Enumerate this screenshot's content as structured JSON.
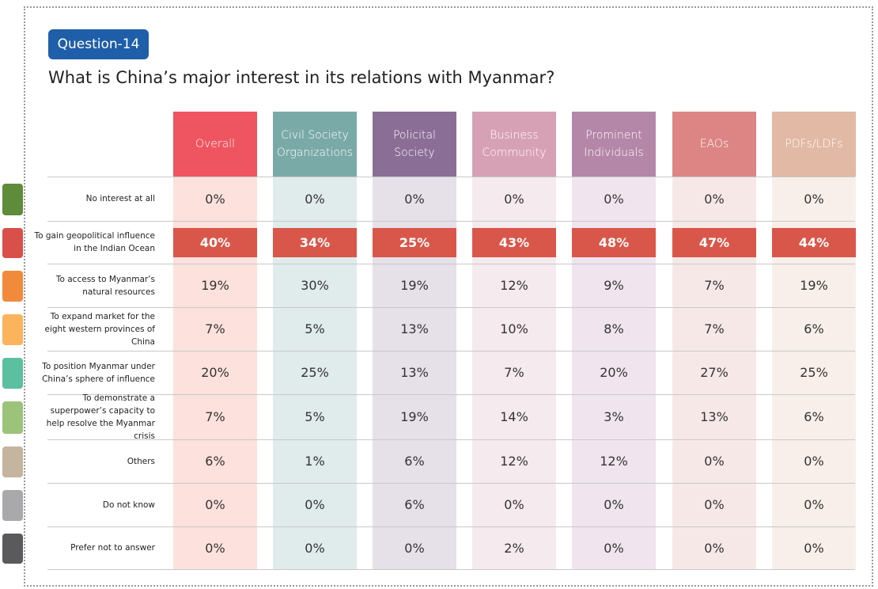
{
  "header": {
    "badge": "Question-14",
    "title": "What is China’s major interest in its relations with Myanmar?"
  },
  "table": {
    "columns": [
      "Overall",
      "Civil Society Organizations",
      "Policital Society",
      "Business Community",
      "Prominent Individuals",
      "EAOs",
      "PDFs/LDFs"
    ],
    "rows": [
      {
        "label": "No interest at all",
        "values": [
          "0%",
          "0%",
          "0%",
          "0%",
          "0%",
          "0%",
          "0%"
        ]
      },
      {
        "label": "To gain geopolitical influence in the Indian Ocean",
        "values": [
          "40%",
          "34%",
          "25%",
          "43%",
          "48%",
          "47%",
          "44%"
        ]
      },
      {
        "label": "To access to Myanmar’s natural resources",
        "values": [
          "19%",
          "30%",
          "19%",
          "12%",
          "9%",
          "7%",
          "19%"
        ]
      },
      {
        "label": "To expand market for the eight western provinces of China",
        "values": [
          "7%",
          "5%",
          "13%",
          "10%",
          "8%",
          "7%",
          "6%"
        ]
      },
      {
        "label": "To position Myanmar under China’s sphere of influence",
        "values": [
          "20%",
          "25%",
          "13%",
          "7%",
          "20%",
          "27%",
          "25%"
        ]
      },
      {
        "label": "To demonstrate a superpower’s capacity to help resolve the Myanmar crisis",
        "values": [
          "7%",
          "5%",
          "19%",
          "14%",
          "3%",
          "13%",
          "6%"
        ]
      },
      {
        "label": "Others",
        "values": [
          "6%",
          "1%",
          "6%",
          "12%",
          "12%",
          "0%",
          "0%"
        ]
      },
      {
        "label": "Do not know",
        "values": [
          "0%",
          "0%",
          "6%",
          "0%",
          "0%",
          "0%",
          "0%"
        ]
      },
      {
        "label": "Prefer not to answer",
        "values": [
          "0%",
          "0%",
          "0%",
          "2%",
          "0%",
          "0%",
          "0%"
        ]
      }
    ]
  }
}
